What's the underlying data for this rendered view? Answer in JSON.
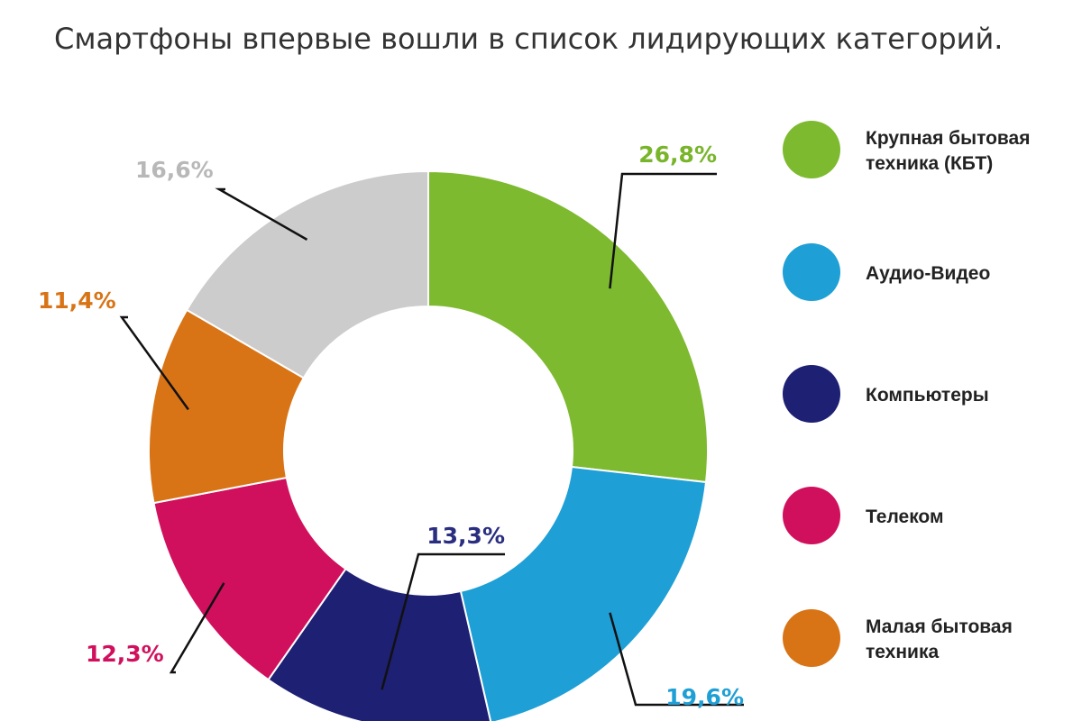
{
  "title": "Смартфоны впервые вошли в список лидирующих категорий.",
  "chart_data": {
    "type": "pie",
    "style": "donut",
    "start": "top",
    "direction": "clockwise",
    "slices": [
      {
        "label": "Крупная бытовая техника (КБТ)",
        "value": 26.8,
        "value_label": "26,8%",
        "color": "#7dba2f",
        "label_color": "#79b52b"
      },
      {
        "label": "Аудио-Видео",
        "value": 19.6,
        "value_label": "19,6%",
        "color": "#1e9fd6",
        "label_color": "#1e9fd6"
      },
      {
        "label": "",
        "value": 13.3,
        "value_label": "13,3%",
        "color": "#1d2073",
        "label_color": "#2a2e80"
      },
      {
        "label": "",
        "value": 12.3,
        "value_label": "12,3%",
        "color": "#d1105d",
        "label_color": "#d1105d"
      },
      {
        "label": "",
        "value": 11.4,
        "value_label": "11,4%",
        "color": "#d87416",
        "label_color": "#d87416"
      },
      {
        "label": "",
        "value": 16.6,
        "value_label": "16,6%",
        "color": "#cccccc",
        "label_color": "#b8b8b8"
      }
    ],
    "legend": [
      {
        "label_lines": [
          "Крупная бытовая",
          "техника (КБТ)"
        ],
        "color": "#7dba2f"
      },
      {
        "label_lines": [
          "Аудио-Видео"
        ],
        "color": "#1e9fd6"
      },
      {
        "label_lines": [
          "Компьютеры"
        ],
        "color": "#1d2073"
      },
      {
        "label_lines": [
          "Телеком"
        ],
        "color": "#d1105d"
      },
      {
        "label_lines": [
          "Малая бытовая",
          "техника"
        ],
        "color": "#d87416"
      }
    ],
    "legend_position": "right"
  }
}
